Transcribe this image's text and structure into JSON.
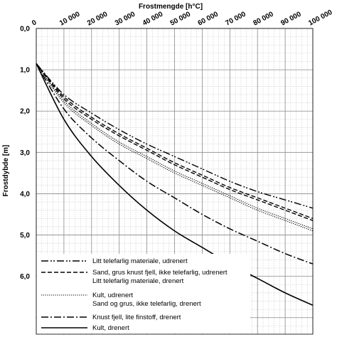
{
  "chart_data": {
    "type": "line",
    "title": "",
    "xlabel": "Frostmengde [h°C]",
    "ylabel": "Frostdybde [m]",
    "x_ticks": [
      "0",
      "10 000",
      "20 000",
      "30 000",
      "40 000",
      "50 000",
      "60 000",
      "70 000",
      "80 000",
      "90 000",
      "100 000"
    ],
    "y_ticks": [
      "0,0",
      "1,0",
      "2,0",
      "3,0",
      "4,0",
      "5,0",
      "6,0"
    ],
    "xlim": [
      0,
      100000
    ],
    "ylim": [
      0,
      7.4
    ],
    "x_axis_position": "top",
    "y_inverted": true,
    "grid": true,
    "legend_position": "bottom-left",
    "series": [
      {
        "name": "Litt telefarlig materiale, udrenert",
        "style": "dashdotdot",
        "x": [
          0,
          10000,
          20000,
          30000,
          40000,
          50000,
          60000,
          70000,
          80000,
          90000,
          100000
        ],
        "y": [
          0.85,
          1.6,
          2.05,
          2.45,
          2.8,
          3.1,
          3.4,
          3.7,
          3.95,
          4.15,
          4.35
        ]
      },
      {
        "name": "Sand, grus knust fjell, ikke telefarlig, udrenert",
        "style": "dashed",
        "x": [
          0,
          10000,
          20000,
          30000,
          40000,
          50000,
          60000,
          70000,
          80000,
          90000,
          100000
        ],
        "y": [
          0.85,
          1.65,
          2.15,
          2.55,
          2.9,
          3.25,
          3.55,
          3.85,
          4.1,
          4.35,
          4.6
        ]
      },
      {
        "name": "Litt telefarlig materiale, drenert",
        "style": "dashed",
        "x": [
          0,
          10000,
          20000,
          30000,
          40000,
          50000,
          60000,
          70000,
          80000,
          90000,
          100000
        ],
        "y": [
          0.85,
          1.7,
          2.2,
          2.6,
          2.95,
          3.3,
          3.6,
          3.9,
          4.15,
          4.4,
          4.65
        ]
      },
      {
        "name": "Kult, udrenert",
        "style": "dotted",
        "x": [
          0,
          10000,
          20000,
          30000,
          40000,
          50000,
          60000,
          70000,
          80000,
          90000,
          100000
        ],
        "y": [
          0.85,
          1.75,
          2.3,
          2.75,
          3.1,
          3.45,
          3.75,
          4.05,
          4.35,
          4.6,
          4.85
        ]
      },
      {
        "name": "Sand og grus, ikke telefarlig, drenert",
        "style": "dotted",
        "x": [
          0,
          10000,
          20000,
          30000,
          40000,
          50000,
          60000,
          70000,
          80000,
          90000,
          100000
        ],
        "y": [
          0.85,
          1.8,
          2.35,
          2.8,
          3.15,
          3.5,
          3.8,
          4.1,
          4.4,
          4.65,
          4.9
        ]
      },
      {
        "name": "Knust fjell, lite finstoff, drenert",
        "style": "dashdot",
        "x": [
          0,
          10000,
          20000,
          30000,
          40000,
          50000,
          60000,
          70000,
          80000,
          90000,
          100000
        ],
        "y": [
          0.85,
          1.95,
          2.65,
          3.2,
          3.7,
          4.1,
          4.5,
          4.85,
          5.15,
          5.45,
          5.7
        ]
      },
      {
        "name": "Kult, drenert",
        "style": "solid",
        "x": [
          0,
          10000,
          20000,
          30000,
          40000,
          50000,
          60000,
          70000,
          80000,
          90000,
          100000
        ],
        "y": [
          0.85,
          2.2,
          3.1,
          3.8,
          4.4,
          4.9,
          5.3,
          5.7,
          6.05,
          6.4,
          6.7
        ]
      }
    ]
  }
}
